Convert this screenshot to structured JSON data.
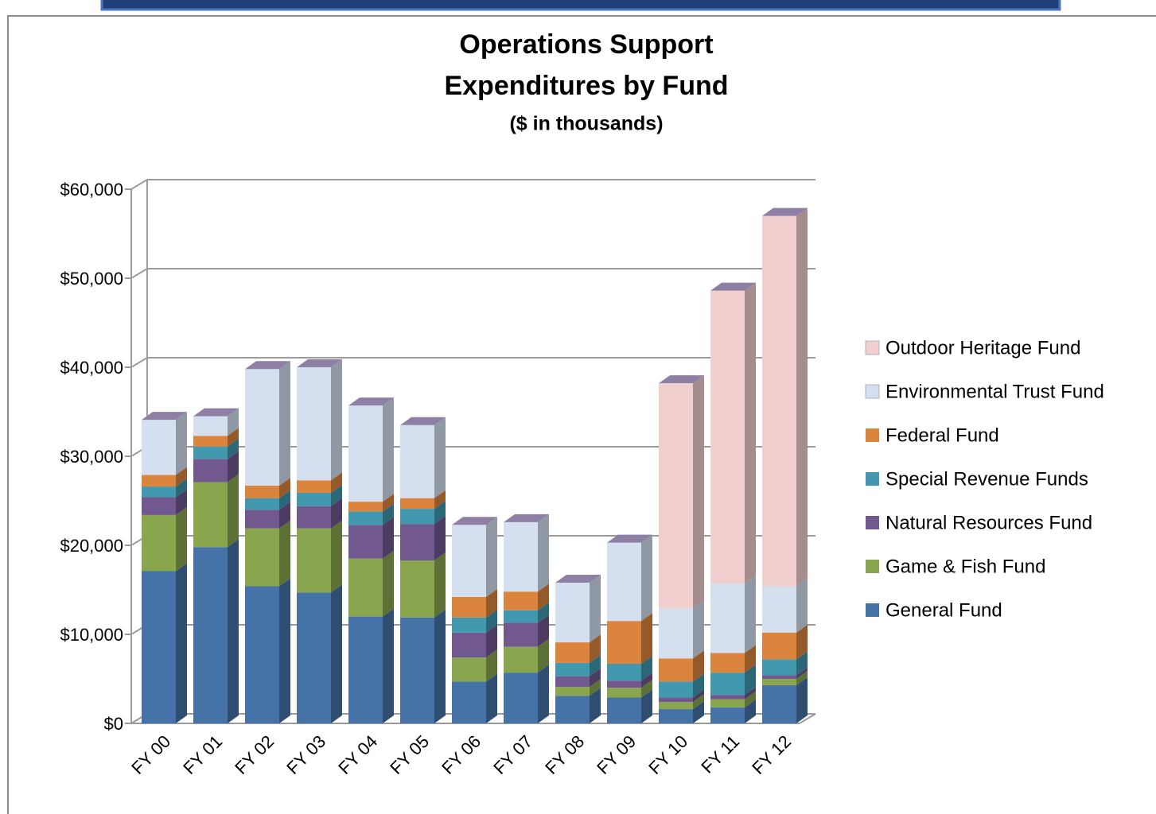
{
  "chart_data": {
    "type": "bar3d-stacked",
    "title": [
      "Operations Support",
      "Expenditures by Fund"
    ],
    "subtitle": "($ in thousands)",
    "categories": [
      "FY 00",
      "FY 01",
      "FY 02",
      "FY 03",
      "FY 04",
      "FY 05",
      "FY 06",
      "FY 07",
      "FY 08",
      "FY 09",
      "FY 10",
      "FY 11",
      "FY 12"
    ],
    "series": [
      {
        "name": "General Fund",
        "color": "#4572a7",
        "values": [
          17100,
          19800,
          15400,
          14700,
          12000,
          11900,
          4700,
          5700,
          3100,
          2900,
          1600,
          1800,
          4300
        ]
      },
      {
        "name": "Game & Fish Fund",
        "color": "#89a54e",
        "values": [
          6300,
          7300,
          6500,
          7200,
          6500,
          6400,
          2700,
          2900,
          1000,
          1100,
          800,
          900,
          700
        ]
      },
      {
        "name": "Natural Resources Fund",
        "color": "#71588f",
        "values": [
          2000,
          2600,
          2100,
          2500,
          3800,
          4100,
          2800,
          2700,
          1200,
          800,
          500,
          500,
          400
        ]
      },
      {
        "name": "Special Revenue Funds",
        "color": "#4198af",
        "values": [
          1200,
          1400,
          1300,
          1500,
          1500,
          1700,
          1700,
          1400,
          1500,
          1900,
          1800,
          2500,
          1800
        ]
      },
      {
        "name": "Federal Fund",
        "color": "#db843d",
        "values": [
          1300,
          1200,
          1400,
          1400,
          1100,
          1200,
          2300,
          2100,
          2300,
          4800,
          2600,
          2200,
          3000
        ]
      },
      {
        "name": "Environmental Trust Fund",
        "color": "#d4dff0",
        "values": [
          6200,
          2200,
          13100,
          12700,
          10800,
          8200,
          8100,
          7800,
          6700,
          8800,
          5600,
          7800,
          5200
        ]
      },
      {
        "name": "Outdoor Heritage Fund",
        "color": "#f2cfcf",
        "values": [
          0,
          0,
          0,
          0,
          0,
          0,
          0,
          0,
          0,
          0,
          25300,
          32900,
          41600
        ]
      }
    ],
    "ylim": [
      0,
      60000
    ],
    "yticks": [
      {
        "value": 0,
        "label": "$0"
      },
      {
        "value": 10000,
        "label": "$10,000"
      },
      {
        "value": 20000,
        "label": "$20,000"
      },
      {
        "value": 30000,
        "label": "$30,000"
      },
      {
        "value": 40000,
        "label": "$40,000"
      },
      {
        "value": 50000,
        "label": "$50,000"
      },
      {
        "value": 60000,
        "label": "$60,000"
      }
    ],
    "grid": true,
    "legend": "right"
  }
}
